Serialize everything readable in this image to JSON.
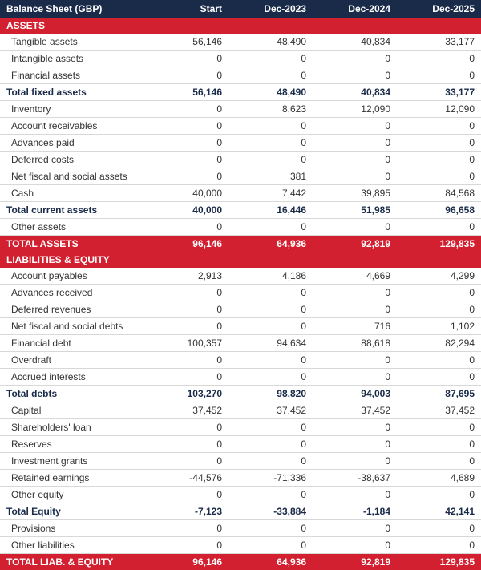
{
  "colors": {
    "header_bg": "#1a2b4a",
    "red_bg": "#d22031",
    "text": "#333333",
    "border": "#d8d8d8",
    "subtotal_text": "#1a2b4a"
  },
  "header": [
    "Balance Sheet (GBP)",
    "Start",
    "Dec-2023",
    "Dec-2024",
    "Dec-2025"
  ],
  "rows": [
    {
      "type": "section",
      "cells": [
        "ASSETS",
        "",
        "",
        "",
        ""
      ]
    },
    {
      "type": "normal",
      "cells": [
        "Tangible assets",
        "56,146",
        "48,490",
        "40,834",
        "33,177"
      ]
    },
    {
      "type": "normal",
      "cells": [
        "Intangible assets",
        "0",
        "0",
        "0",
        "0"
      ]
    },
    {
      "type": "normal",
      "cells": [
        "Financial assets",
        "0",
        "0",
        "0",
        "0"
      ]
    },
    {
      "type": "subtotal",
      "cells": [
        "Total fixed assets",
        "56,146",
        "48,490",
        "40,834",
        "33,177"
      ]
    },
    {
      "type": "normal",
      "cells": [
        "Inventory",
        "0",
        "8,623",
        "12,090",
        "12,090"
      ]
    },
    {
      "type": "normal",
      "cells": [
        "Account receivables",
        "0",
        "0",
        "0",
        "0"
      ]
    },
    {
      "type": "normal",
      "cells": [
        "Advances paid",
        "0",
        "0",
        "0",
        "0"
      ]
    },
    {
      "type": "normal",
      "cells": [
        "Deferred costs",
        "0",
        "0",
        "0",
        "0"
      ]
    },
    {
      "type": "normal",
      "cells": [
        "Net fiscal and social assets",
        "0",
        "381",
        "0",
        "0"
      ]
    },
    {
      "type": "normal",
      "cells": [
        "Cash",
        "40,000",
        "7,442",
        "39,895",
        "84,568"
      ]
    },
    {
      "type": "subtotal",
      "cells": [
        "Total current assets",
        "40,000",
        "16,446",
        "51,985",
        "96,658"
      ]
    },
    {
      "type": "normal",
      "cells": [
        "Other assets",
        "0",
        "0",
        "0",
        "0"
      ]
    },
    {
      "type": "grandtotal",
      "cells": [
        "TOTAL ASSETS",
        "96,146",
        "64,936",
        "92,819",
        "129,835"
      ]
    },
    {
      "type": "section",
      "cells": [
        "LIABILITIES & EQUITY",
        "",
        "",
        "",
        ""
      ]
    },
    {
      "type": "normal",
      "cells": [
        "Account payables",
        "2,913",
        "4,186",
        "4,669",
        "4,299"
      ]
    },
    {
      "type": "normal",
      "cells": [
        "Advances received",
        "0",
        "0",
        "0",
        "0"
      ]
    },
    {
      "type": "normal",
      "cells": [
        "Deferred revenues",
        "0",
        "0",
        "0",
        "0"
      ]
    },
    {
      "type": "normal",
      "cells": [
        "Net fiscal and social debts",
        "0",
        "0",
        "716",
        "1,102"
      ]
    },
    {
      "type": "normal",
      "cells": [
        "Financial debt",
        "100,357",
        "94,634",
        "88,618",
        "82,294"
      ]
    },
    {
      "type": "normal",
      "cells": [
        "Overdraft",
        "0",
        "0",
        "0",
        "0"
      ]
    },
    {
      "type": "normal",
      "cells": [
        "Accrued interests",
        "0",
        "0",
        "0",
        "0"
      ]
    },
    {
      "type": "subtotal",
      "cells": [
        "Total debts",
        "103,270",
        "98,820",
        "94,003",
        "87,695"
      ]
    },
    {
      "type": "normal",
      "cells": [
        "Capital",
        "37,452",
        "37,452",
        "37,452",
        "37,452"
      ]
    },
    {
      "type": "normal",
      "cells": [
        "Shareholders' loan",
        "0",
        "0",
        "0",
        "0"
      ]
    },
    {
      "type": "normal",
      "cells": [
        "Reserves",
        "0",
        "0",
        "0",
        "0"
      ]
    },
    {
      "type": "normal",
      "cells": [
        "Investment grants",
        "0",
        "0",
        "0",
        "0"
      ]
    },
    {
      "type": "normal",
      "cells": [
        "Retained earnings",
        "-44,576",
        "-71,336",
        "-38,637",
        "4,689"
      ]
    },
    {
      "type": "normal",
      "cells": [
        "Other equity",
        "0",
        "0",
        "0",
        "0"
      ]
    },
    {
      "type": "subtotal",
      "cells": [
        "Total Equity",
        "-7,123",
        "-33,884",
        "-1,184",
        "42,141"
      ]
    },
    {
      "type": "normal",
      "cells": [
        "Provisions",
        "0",
        "0",
        "0",
        "0"
      ]
    },
    {
      "type": "normal",
      "cells": [
        "Other liabilities",
        "0",
        "0",
        "0",
        "0"
      ]
    },
    {
      "type": "grandtotal",
      "cells": [
        "TOTAL LIAB. & EQUITY",
        "96,146",
        "64,936",
        "92,819",
        "129,835"
      ]
    }
  ]
}
